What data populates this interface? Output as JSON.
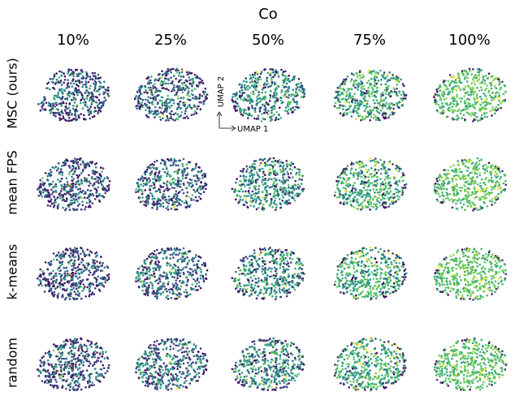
{
  "title": "Co",
  "columns": [
    "10%",
    "25%",
    "50%",
    "75%",
    "100%"
  ],
  "rows": [
    "MSC (ours)",
    "mean FPS",
    "k-means",
    "random"
  ],
  "axes": {
    "x": "UMAP 1",
    "y": "UMAP 2"
  }
}
